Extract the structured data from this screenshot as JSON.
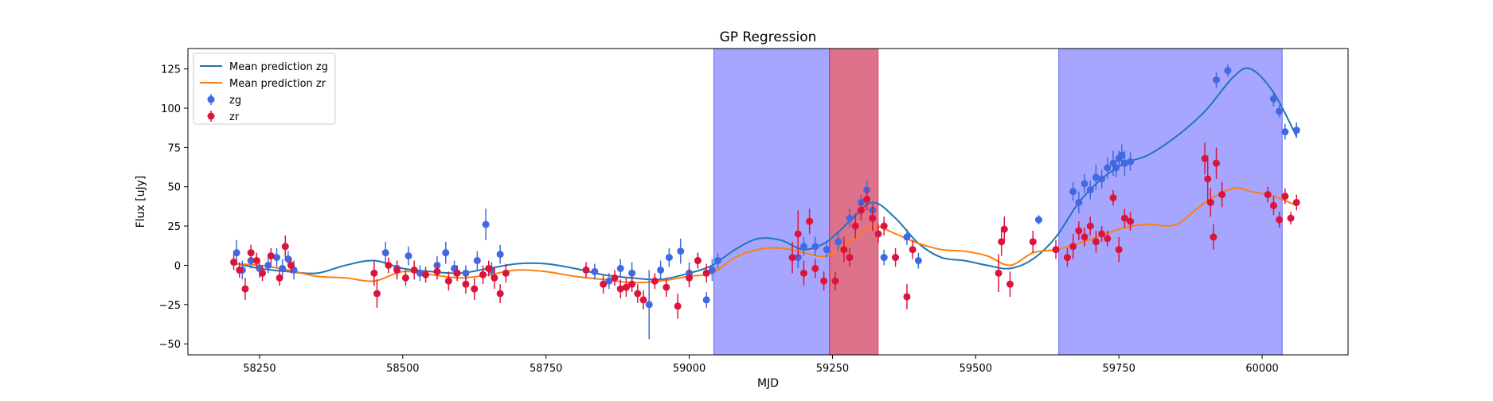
{
  "chart_data": {
    "type": "scatter",
    "title": "GP Regression",
    "xlabel": "MJD",
    "ylabel": "Flux [uJy]",
    "xlim": [
      58125,
      60150
    ],
    "ylim": [
      -57,
      138
    ],
    "xticks": [
      58250,
      58500,
      58750,
      59000,
      59250,
      59500,
      59750,
      60000
    ],
    "yticks": [
      -50,
      -25,
      0,
      25,
      50,
      75,
      100,
      125
    ],
    "grid": false,
    "legend_position": "top-left",
    "colors": {
      "zg": "#4169e1",
      "zr": "#dc143c",
      "mean_zg": "#1f77b4",
      "mean_zr": "#ff7f0e",
      "span_blue": "#0000ff",
      "span_red": "#c8143c"
    },
    "spans": [
      {
        "x0": 59043,
        "x1": 59245,
        "color": "blue"
      },
      {
        "x0": 59245,
        "x1": 59330,
        "color": "red"
      },
      {
        "x0": 59645,
        "x1": 60035,
        "color": "blue"
      }
    ],
    "lines": [
      {
        "name": "Mean prediction zg",
        "color": "#1f77b4",
        "x": [
          58200,
          58250,
          58300,
          58350,
          58400,
          58450,
          58500,
          58550,
          58600,
          58650,
          58700,
          58750,
          58800,
          58850,
          58900,
          58950,
          59000,
          59040,
          59080,
          59120,
          59160,
          59200,
          59240,
          59280,
          59320,
          59360,
          59400,
          59440,
          59480,
          59520,
          59560,
          59600,
          59640,
          59680,
          59720,
          59760,
          59800,
          59850,
          59900,
          59950,
          59980,
          60020,
          60060
        ],
        "y": [
          2,
          -2,
          -4,
          -5,
          0,
          3,
          -2,
          -4,
          -5,
          -2,
          1,
          1,
          -2,
          -6,
          -8,
          -9,
          -5,
          0,
          10,
          17,
          16,
          10,
          15,
          28,
          40,
          30,
          14,
          5,
          3,
          0,
          -2,
          4,
          18,
          40,
          55,
          65,
          70,
          82,
          98,
          120,
          125,
          110,
          82
        ]
      },
      {
        "name": "Mean prediction zr",
        "color": "#ff7f0e",
        "x": [
          58200,
          58250,
          58300,
          58350,
          58400,
          58450,
          58500,
          58550,
          58600,
          58650,
          58700,
          58750,
          58800,
          58850,
          58900,
          58950,
          59000,
          59040,
          59080,
          59120,
          59160,
          59200,
          59240,
          59280,
          59320,
          59360,
          59400,
          59440,
          59480,
          59520,
          59560,
          59600,
          59640,
          59680,
          59720,
          59760,
          59800,
          59850,
          59900,
          59950,
          59980,
          60020,
          60060
        ],
        "y": [
          1,
          0,
          -3,
          -7,
          -8,
          -10,
          -4,
          -6,
          -8,
          -6,
          -3,
          -4,
          -7,
          -9,
          -11,
          -10,
          -7,
          -5,
          5,
          10,
          11,
          8,
          6,
          15,
          25,
          20,
          14,
          10,
          9,
          6,
          0,
          8,
          10,
          14,
          19,
          24,
          26,
          26,
          40,
          49,
          47,
          44,
          38
        ]
      }
    ],
    "series": [
      {
        "name": "zg",
        "color": "#4169e1",
        "x": [
          58210,
          58220,
          58235,
          58250,
          58265,
          58280,
          58290,
          58300,
          58310,
          58470,
          58490,
          58510,
          58530,
          58560,
          58575,
          58590,
          58610,
          58630,
          58645,
          58655,
          58670,
          58835,
          58860,
          58880,
          58900,
          58930,
          58950,
          58965,
          58985,
          59000,
          59015,
          59030,
          59040,
          59050,
          59190,
          59200,
          59220,
          59240,
          59260,
          59280,
          59300,
          59310,
          59320,
          59340,
          59380,
          59400,
          59610,
          59670,
          59680,
          59690,
          59700,
          59710,
          59720,
          59730,
          59740,
          59745,
          59750,
          59755,
          59760,
          59770,
          59920,
          59940,
          60020,
          60030,
          60040,
          60060
        ],
        "y": [
          8,
          -3,
          3,
          -2,
          0,
          5,
          -2,
          4,
          -3,
          8,
          -2,
          6,
          -5,
          0,
          8,
          -2,
          -5,
          3,
          26,
          -3,
          7,
          -4,
          -10,
          -2,
          -5,
          -25,
          -3,
          5,
          9,
          -5,
          3,
          -22,
          -3,
          3,
          5,
          12,
          12,
          10,
          15,
          30,
          40,
          48,
          35,
          5,
          18,
          3,
          29,
          47,
          40,
          52,
          48,
          56,
          55,
          62,
          65,
          62,
          68,
          70,
          65,
          66,
          118,
          124,
          106,
          98,
          85,
          86
        ],
        "err": [
          8,
          6,
          5,
          6,
          5,
          6,
          6,
          5,
          6,
          7,
          5,
          6,
          5,
          6,
          7,
          5,
          5,
          6,
          10,
          5,
          6,
          5,
          5,
          6,
          7,
          22,
          6,
          6,
          8,
          7,
          5,
          5,
          7,
          5,
          7,
          6,
          6,
          5,
          6,
          6,
          5,
          6,
          6,
          5,
          5,
          5,
          3,
          6,
          7,
          6,
          6,
          8,
          6,
          7,
          8,
          6,
          5,
          7,
          8,
          6,
          5,
          4,
          5,
          4,
          5,
          5
        ]
      },
      {
        "name": "zr",
        "color": "#dc143c",
        "x": [
          58205,
          58215,
          58225,
          58235,
          58245,
          58255,
          58270,
          58285,
          58295,
          58305,
          58450,
          58455,
          58475,
          58490,
          58505,
          58520,
          58540,
          58560,
          58580,
          58595,
          58610,
          58625,
          58640,
          58650,
          58660,
          58670,
          58680,
          58820,
          58850,
          58870,
          58880,
          58890,
          58900,
          58910,
          58920,
          58940,
          58960,
          58980,
          59000,
          59015,
          59030,
          59180,
          59190,
          59200,
          59210,
          59220,
          59235,
          59255,
          59270,
          59280,
          59290,
          59300,
          59310,
          59320,
          59330,
          59340,
          59360,
          59380,
          59390,
          59540,
          59545,
          59550,
          59560,
          59600,
          59640,
          59660,
          59670,
          59680,
          59690,
          59700,
          59710,
          59720,
          59730,
          59740,
          59750,
          59760,
          59770,
          59900,
          59905,
          59910,
          59915,
          59920,
          59930,
          60010,
          60020,
          60030,
          60040,
          60050,
          60060
        ],
        "y": [
          2,
          -3,
          -15,
          8,
          3,
          -5,
          6,
          -8,
          12,
          0,
          -5,
          -18,
          0,
          -3,
          -8,
          -3,
          -6,
          -4,
          -10,
          -5,
          -12,
          -15,
          -6,
          -2,
          -8,
          -18,
          -5,
          -3,
          -12,
          -8,
          -15,
          -14,
          -12,
          -18,
          -22,
          -10,
          -14,
          -26,
          -8,
          3,
          -5,
          5,
          20,
          -5,
          28,
          -2,
          -10,
          -10,
          10,
          5,
          25,
          35,
          42,
          30,
          20,
          25,
          5,
          -20,
          10,
          -5,
          15,
          23,
          -12,
          15,
          10,
          5,
          12,
          22,
          18,
          25,
          15,
          20,
          17,
          43,
          10,
          30,
          28,
          68,
          55,
          40,
          18,
          65,
          45,
          45,
          38,
          29,
          44,
          30,
          40
        ],
        "err": [
          5,
          5,
          7,
          5,
          5,
          5,
          5,
          5,
          7,
          5,
          8,
          9,
          5,
          6,
          5,
          6,
          5,
          5,
          6,
          5,
          6,
          7,
          6,
          5,
          7,
          6,
          6,
          5,
          6,
          5,
          6,
          6,
          5,
          6,
          6,
          5,
          6,
          8,
          6,
          5,
          6,
          10,
          15,
          8,
          8,
          6,
          6,
          6,
          8,
          6,
          8,
          6,
          7,
          8,
          6,
          6,
          6,
          8,
          6,
          12,
          9,
          8,
          8,
          7,
          6,
          6,
          8,
          6,
          6,
          6,
          7,
          5,
          5,
          5,
          8,
          6,
          6,
          10,
          15,
          9,
          8,
          10,
          8,
          5,
          6,
          5,
          5,
          4,
          5
        ]
      }
    ]
  }
}
